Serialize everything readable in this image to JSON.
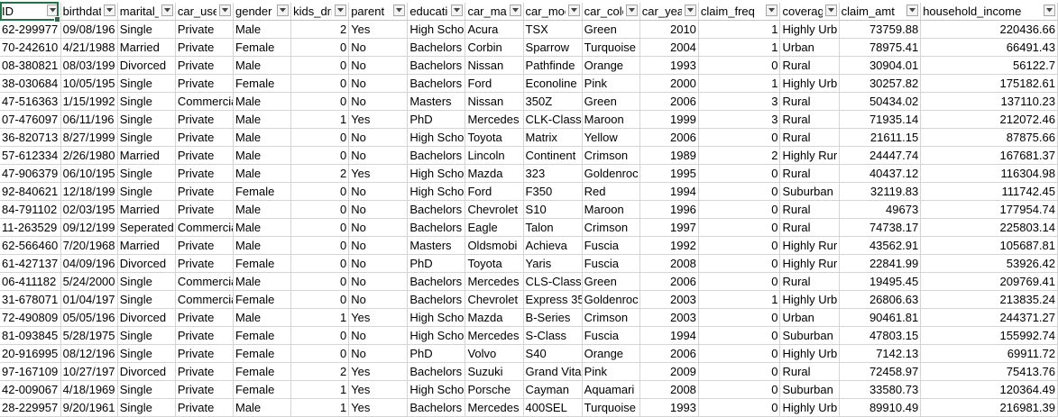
{
  "sheet": {
    "columns": [
      {
        "label": "ID",
        "align": "left"
      },
      {
        "label": "birthdate",
        "align": "left"
      },
      {
        "label": "marital_status",
        "align": "left"
      },
      {
        "label": "car_use",
        "align": "left"
      },
      {
        "label": "gender",
        "align": "left"
      },
      {
        "label": "kids_driving",
        "align": "right"
      },
      {
        "label": "parent",
        "align": "left"
      },
      {
        "label": "education",
        "align": "left"
      },
      {
        "label": "car_make",
        "align": "left"
      },
      {
        "label": "car_model",
        "align": "left"
      },
      {
        "label": "car_color",
        "align": "left"
      },
      {
        "label": "car_year",
        "align": "right"
      },
      {
        "label": "claim_freq",
        "align": "right"
      },
      {
        "label": "coverage_zone",
        "align": "left"
      },
      {
        "label": "claim_amt",
        "align": "right"
      },
      {
        "label": "household_income",
        "align": "right"
      }
    ],
    "rows": [
      [
        "62-299977",
        "09/08/196",
        "Single",
        "Private",
        "Male",
        "2",
        "Yes",
        "High Scho",
        "Acura",
        "TSX",
        "Green",
        "2010",
        "1",
        "Highly Urb",
        "73759.88",
        "220436.66"
      ],
      [
        "70-242610",
        "4/21/1988",
        "Married",
        "Private",
        "Female",
        "0",
        "No",
        "Bachelors",
        "Corbin",
        "Sparrow",
        "Turquoise",
        "2004",
        "1",
        "Urban",
        "78975.41",
        "66491.43"
      ],
      [
        "08-380821",
        "08/03/199",
        "Divorced",
        "Private",
        "Male",
        "0",
        "No",
        "Bachelors",
        "Nissan",
        "Pathfinde",
        "Orange",
        "1993",
        "0",
        "Rural",
        "30904.01",
        "56122.7"
      ],
      [
        "38-030684",
        "10/05/195",
        "Single",
        "Private",
        "Female",
        "0",
        "No",
        "Bachelors",
        "Ford",
        "Econoline",
        "Pink",
        "2000",
        "1",
        "Highly Urb",
        "30257.82",
        "175182.61"
      ],
      [
        "47-516363",
        "1/15/1992",
        "Single",
        "Commercia",
        "Male",
        "0",
        "No",
        "Masters",
        "Nissan",
        "350Z",
        "Green",
        "2006",
        "3",
        "Rural",
        "50434.02",
        "137110.23"
      ],
      [
        "07-476097",
        "06/11/196",
        "Single",
        "Private",
        "Male",
        "1",
        "Yes",
        "PhD",
        "Mercedes",
        "CLK-Class",
        "Maroon",
        "1999",
        "3",
        "Rural",
        "71935.14",
        "212072.46"
      ],
      [
        "36-820713",
        "8/27/1999",
        "Single",
        "Private",
        "Male",
        "0",
        "No",
        "High Scho",
        "Toyota",
        "Matrix",
        "Yellow",
        "2006",
        "0",
        "Rural",
        "21611.15",
        "87875.66"
      ],
      [
        "57-612334",
        "2/26/1980",
        "Married",
        "Private",
        "Male",
        "0",
        "No",
        "Bachelors",
        "Lincoln",
        "Continent",
        "Crimson",
        "1989",
        "2",
        "Highly Rur",
        "24447.74",
        "167681.37"
      ],
      [
        "47-906379",
        "06/10/195",
        "Single",
        "Private",
        "Male",
        "2",
        "Yes",
        "High Scho",
        "Mazda",
        "323",
        "Goldenroc",
        "1995",
        "0",
        "Rural",
        "40437.12",
        "116304.98"
      ],
      [
        "92-840621",
        "12/18/199",
        "Single",
        "Private",
        "Female",
        "0",
        "No",
        "High Scho",
        "Ford",
        "F350",
        "Red",
        "1994",
        "0",
        "Suburban",
        "32119.83",
        "111742.45"
      ],
      [
        "84-791102",
        "02/03/195",
        "Married",
        "Private",
        "Male",
        "0",
        "No",
        "Bachelors",
        "Chevrolet",
        "S10",
        "Maroon",
        "1996",
        "0",
        "Rural",
        "49673",
        "177954.74"
      ],
      [
        "11-263529",
        "09/12/199",
        "Seperated",
        "Commercia",
        "Male",
        "0",
        "No",
        "Bachelors",
        "Eagle",
        "Talon",
        "Crimson",
        "1997",
        "0",
        "Rural",
        "74738.17",
        "225803.14"
      ],
      [
        "62-566460",
        "7/20/1968",
        "Married",
        "Private",
        "Male",
        "0",
        "No",
        "Masters",
        "Oldsmobi",
        "Achieva",
        "Fuscia",
        "1992",
        "0",
        "Highly Rur",
        "43562.91",
        "105687.81"
      ],
      [
        "61-427137",
        "04/09/196",
        "Divorced",
        "Private",
        "Female",
        "0",
        "No",
        "PhD",
        "Toyota",
        "Yaris",
        "Fuscia",
        "2008",
        "0",
        "Highly Rur",
        "22841.99",
        "53926.42"
      ],
      [
        "06-411182",
        "5/24/2000",
        "Single",
        "Commercia",
        "Male",
        "0",
        "No",
        "Bachelors",
        "Mercedes",
        "CLS-Class",
        "Green",
        "2006",
        "0",
        "Rural",
        "19495.45",
        "209769.41"
      ],
      [
        "31-678071",
        "01/04/197",
        "Single",
        "Commercia",
        "Female",
        "0",
        "No",
        "Bachelors",
        "Chevrolet",
        "Express 35",
        "Goldenroc",
        "2003",
        "1",
        "Highly Urb",
        "26806.63",
        "213835.24"
      ],
      [
        "72-490809",
        "05/05/196",
        "Divorced",
        "Private",
        "Male",
        "1",
        "Yes",
        "High Scho",
        "Mazda",
        "B-Series",
        "Crimson",
        "2003",
        "0",
        "Urban",
        "90461.81",
        "244371.27"
      ],
      [
        "81-093845",
        "5/28/1975",
        "Single",
        "Private",
        "Female",
        "0",
        "No",
        "High Scho",
        "Mercedes",
        "S-Class",
        "Fuscia",
        "1994",
        "0",
        "Suburban",
        "47803.15",
        "155992.74"
      ],
      [
        "20-916995",
        "08/12/196",
        "Single",
        "Private",
        "Female",
        "0",
        "No",
        "PhD",
        "Volvo",
        "S40",
        "Orange",
        "2006",
        "0",
        "Highly Urb",
        "7142.13",
        "69911.72"
      ],
      [
        "97-167109",
        "10/27/197",
        "Divorced",
        "Private",
        "Female",
        "2",
        "Yes",
        "Bachelors",
        "Suzuki",
        "Grand Vita",
        "Pink",
        "2009",
        "0",
        "Rural",
        "72458.97",
        "75413.76"
      ],
      [
        "42-009067",
        "4/18/1969",
        "Single",
        "Private",
        "Female",
        "1",
        "Yes",
        "High Scho",
        "Porsche",
        "Cayman",
        "Aquamari",
        "2008",
        "0",
        "Suburban",
        "33580.73",
        "120364.49"
      ],
      [
        "28-229957",
        "9/20/1961",
        "Single",
        "Private",
        "Male",
        "1",
        "Yes",
        "Bachelors",
        "Mercedes",
        "400SEL",
        "Turquoise",
        "1993",
        "0",
        "Highly Urb",
        "89910.49",
        "216981.39"
      ]
    ]
  },
  "colors": {
    "selection": "#217346",
    "gridline": "#d4d4d4"
  }
}
